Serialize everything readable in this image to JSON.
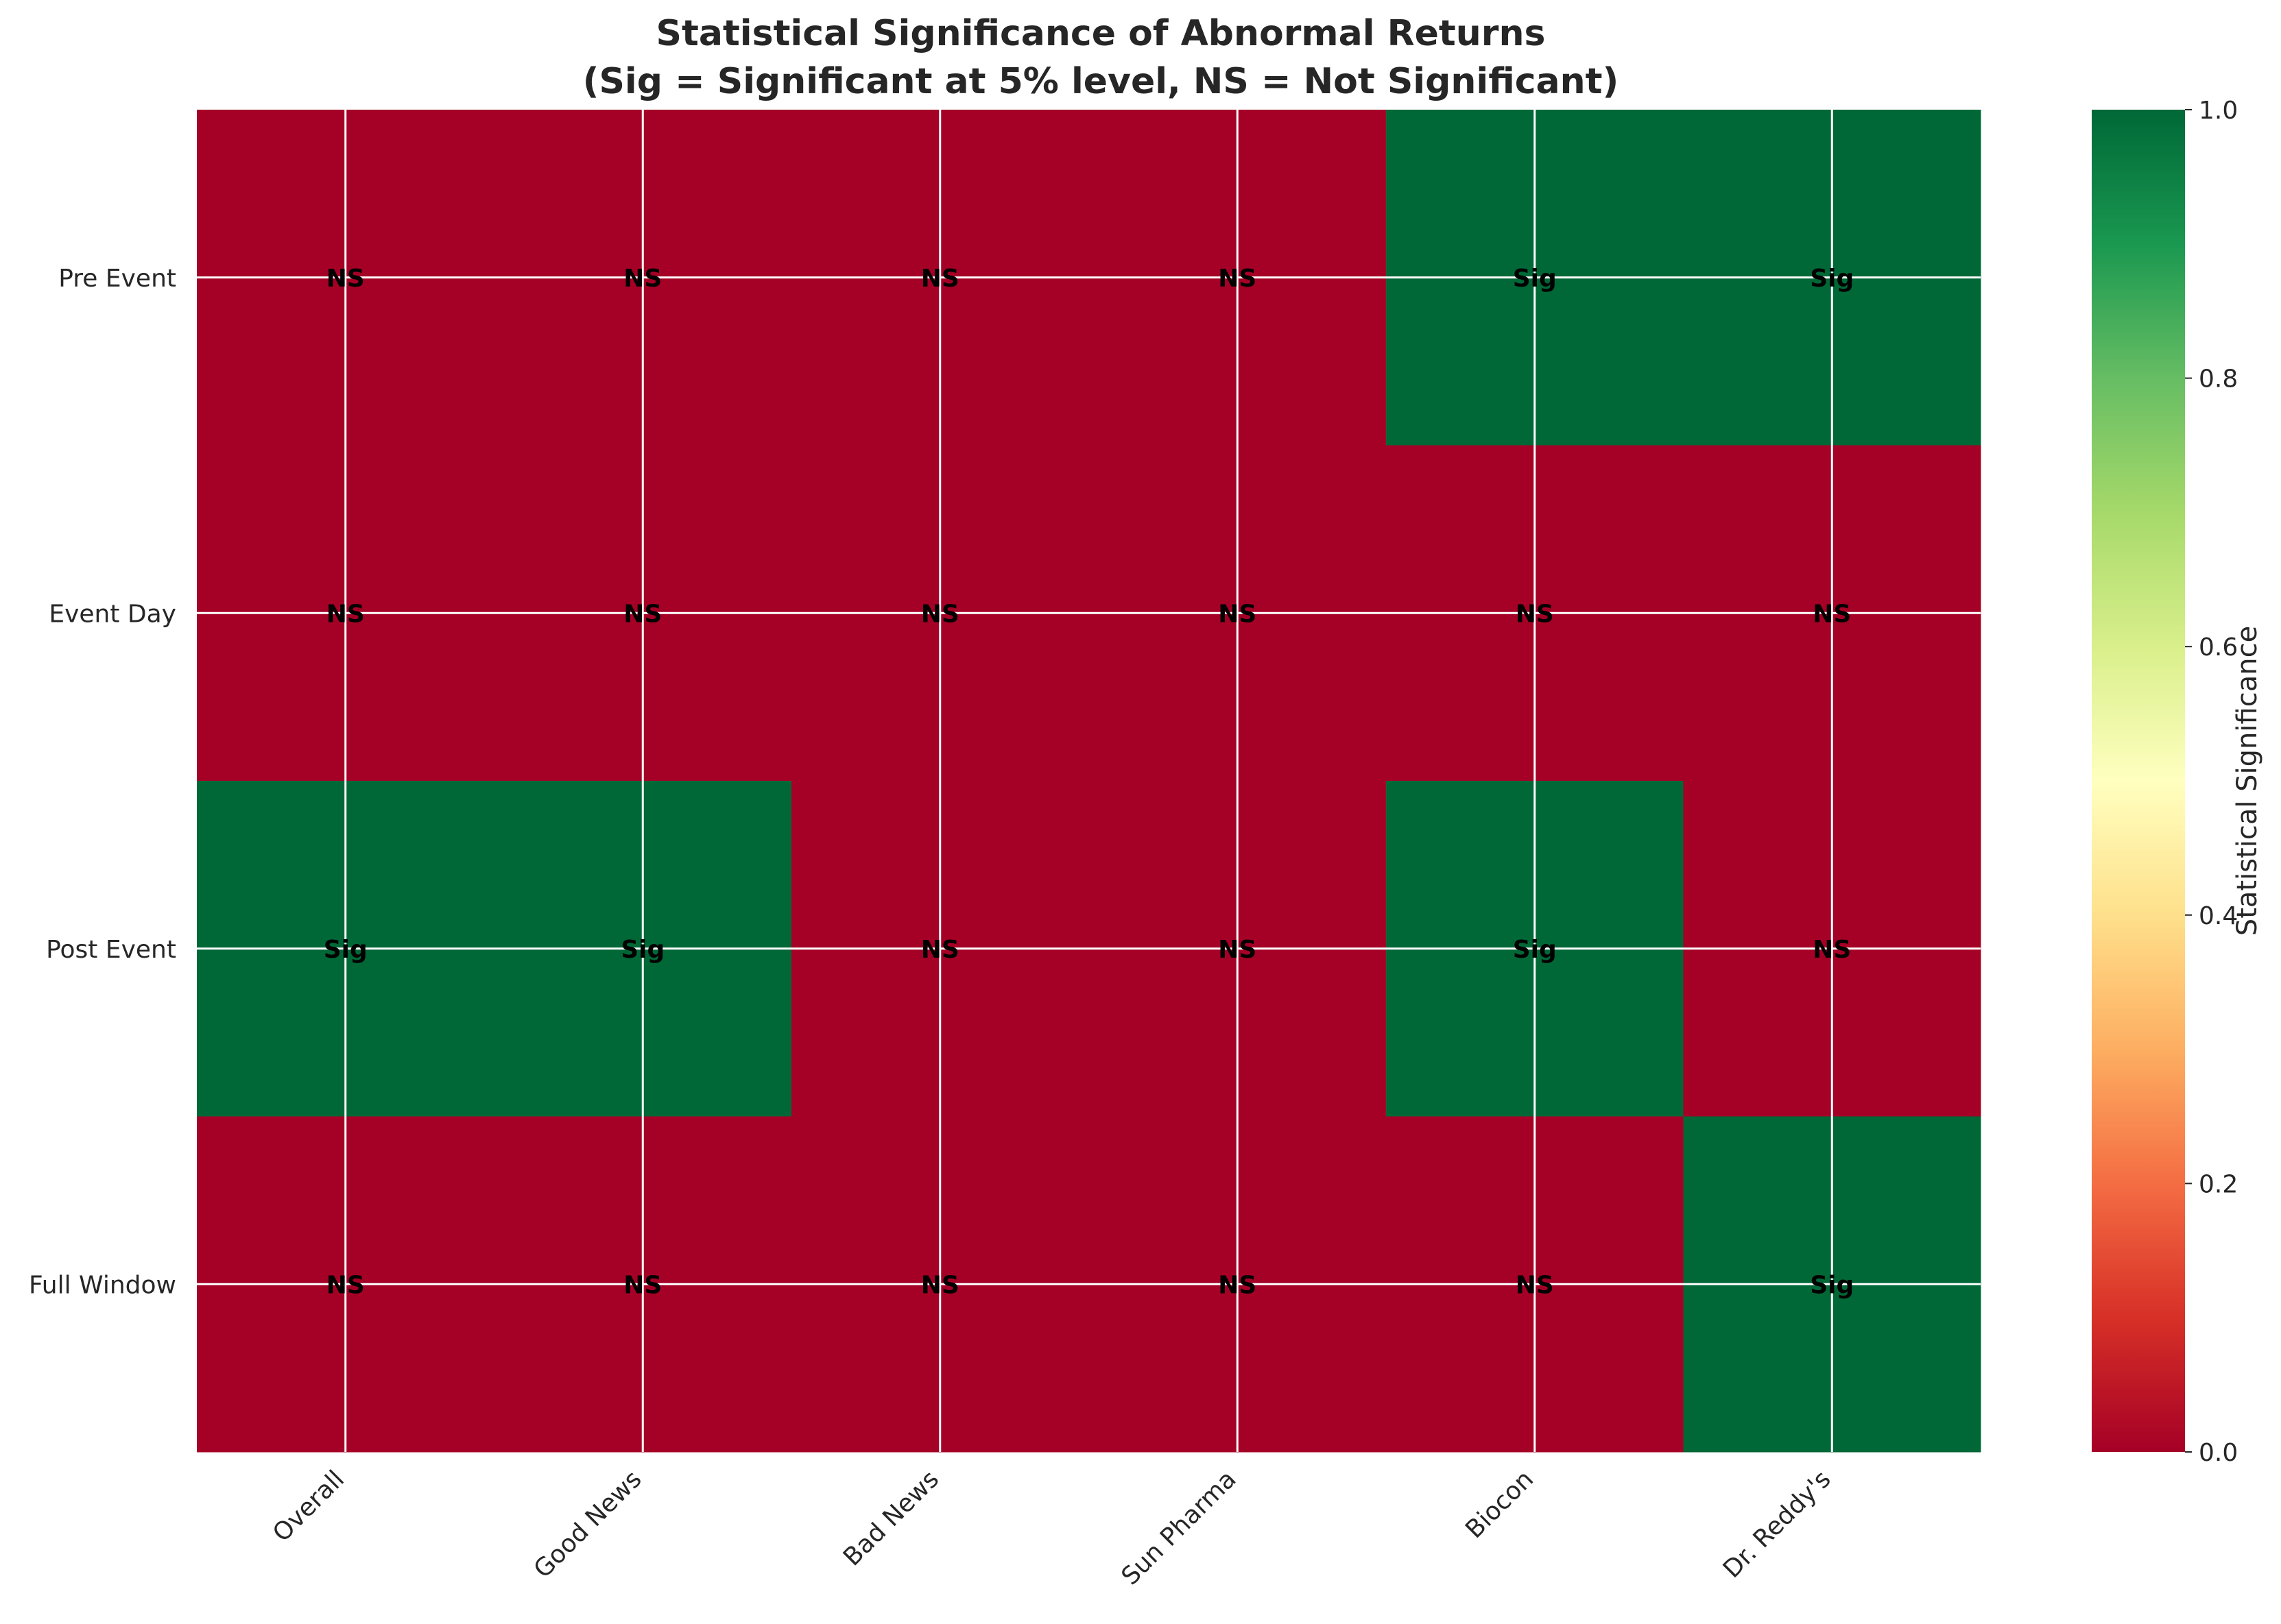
{
  "chart_data": {
    "type": "heatmap",
    "title": "Statistical Significance of Abnormal Returns",
    "subtitle": "(Sig = Significant at 5% level, NS = Not Significant)",
    "columns": [
      "Overall",
      "Good News",
      "Bad News",
      "Sun Pharma",
      "Biocon",
      "Dr. Reddy's"
    ],
    "rows": [
      "Pre Event",
      "Event Day",
      "Post Event",
      "Full Window"
    ],
    "values": [
      [
        0,
        0,
        0,
        0,
        1,
        1
      ],
      [
        0,
        0,
        0,
        0,
        0,
        0
      ],
      [
        1,
        1,
        0,
        0,
        1,
        0
      ],
      [
        0,
        0,
        0,
        0,
        0,
        1
      ]
    ],
    "cell_labels": [
      [
        "NS",
        "NS",
        "NS",
        "NS",
        "Sig",
        "Sig"
      ],
      [
        "NS",
        "NS",
        "NS",
        "NS",
        "NS",
        "NS"
      ],
      [
        "Sig",
        "Sig",
        "NS",
        "NS",
        "Sig",
        "NS"
      ],
      [
        "NS",
        "NS",
        "NS",
        "NS",
        "NS",
        "Sig"
      ]
    ],
    "colorbar": {
      "label": "Statistical Significance",
      "ticks": [
        "0.0",
        "0.2",
        "0.4",
        "0.6",
        "0.8",
        "1.0"
      ],
      "range": [
        0,
        1
      ],
      "colormap": "RdYlGn"
    },
    "colors": {
      "low": "#a50026",
      "high": "#006837"
    },
    "grid": true
  }
}
